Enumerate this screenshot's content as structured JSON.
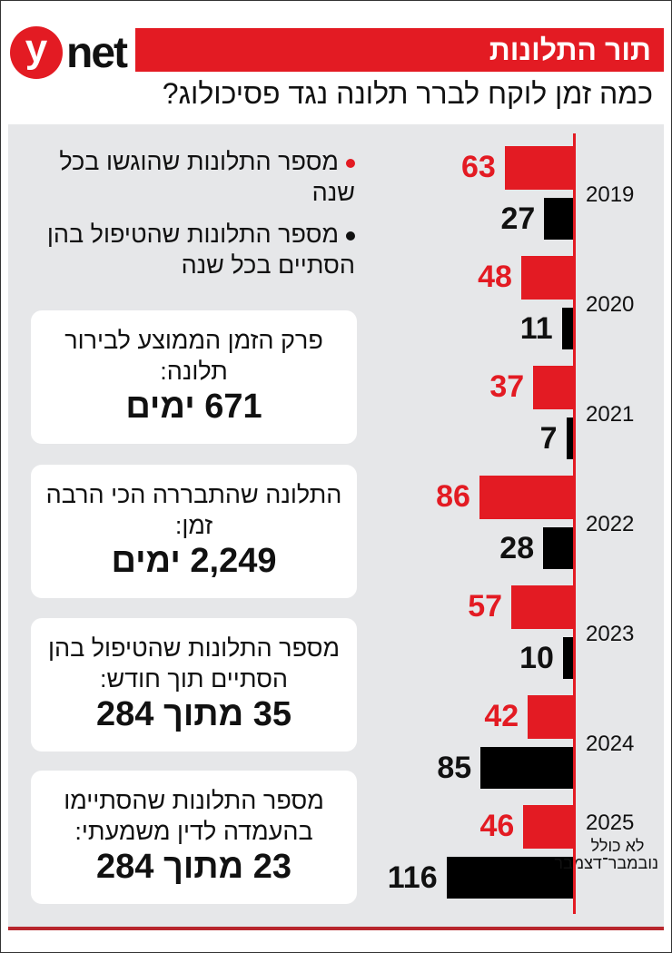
{
  "header": {
    "logo_text": "ynet",
    "section": "תור התלונות",
    "title": "כמה זמן לוקח לברר תלונה נגד פסיכולוג?"
  },
  "colors": {
    "filed": "#e31b23",
    "handled": "#000000",
    "accent": "#e31b23",
    "panel": "#e6e7e9"
  },
  "legend": [
    {
      "label": "מספר התלונות שהוגשו בכל שנה",
      "color": "#e31b23"
    },
    {
      "label": "מספר התלונות שהטיפול בהן הסתיים בכל שנה",
      "color": "#111111"
    }
  ],
  "stats": [
    {
      "label": "פרק הזמן הממוצע לבירור תלונה:",
      "value": "671 ימים"
    },
    {
      "label": "התלונה שהתבררה הכי הרבה זמן:",
      "value": "2,249 ימים"
    },
    {
      "label": "מספר התלונות שהטיפול בהן הסתיים תוך חודש:",
      "value": "35 מתוך 284"
    },
    {
      "label": "מספר התלונות שהסתיימו בהעמדה לדין משמעתי:",
      "value": "23 מתוך 284"
    }
  ],
  "chart_data": {
    "type": "bar",
    "orientation": "horizontal",
    "categories": [
      "2019",
      "2020",
      "2021",
      "2022",
      "2023",
      "2024",
      "2025"
    ],
    "category_note": "לא כולל נובמבר־דצמבר",
    "series": [
      {
        "name": "מספר התלונות שהוגשו בכל שנה",
        "color": "#e31b23",
        "values": [
          63,
          48,
          37,
          86,
          57,
          42,
          46
        ]
      },
      {
        "name": "מספר התלונות שהטיפול בהן הסתיים בכל שנה",
        "color": "#000000",
        "values": [
          27,
          11,
          7,
          28,
          10,
          85,
          116
        ]
      }
    ],
    "data_labels": true
  }
}
